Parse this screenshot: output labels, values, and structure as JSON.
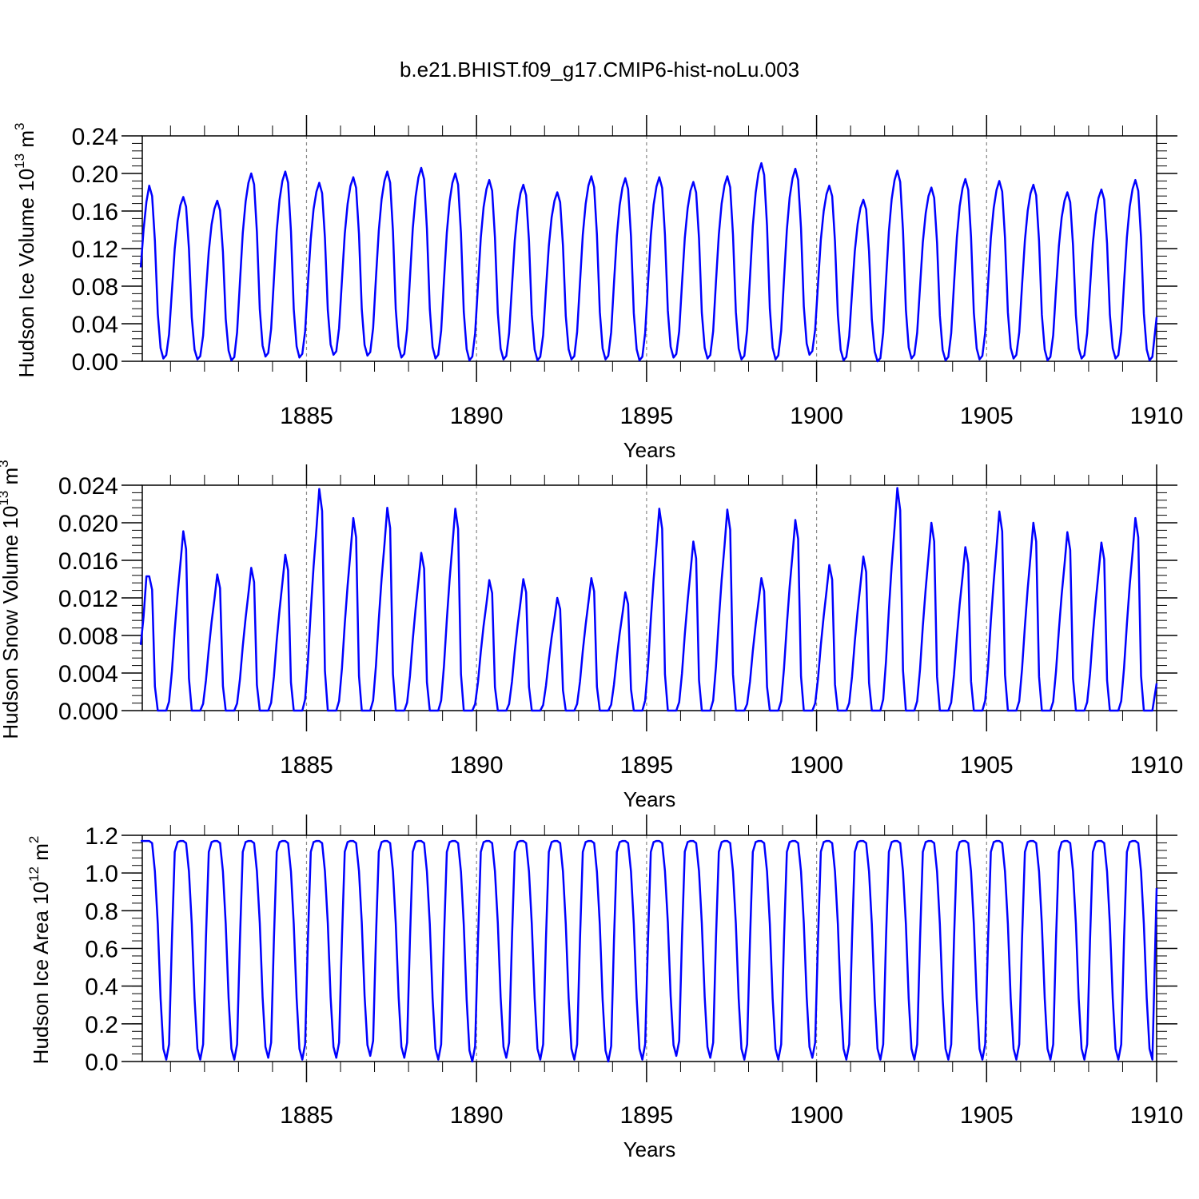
{
  "title": "b.e21.BHIST.f09_g17.CMIP6-hist-noLu.003",
  "colors": {
    "series": "#0000ff",
    "axis": "#000000",
    "refline": "#888888"
  },
  "chart_data": [
    {
      "type": "line",
      "id": "ice-volume",
      "ylabel_main": "Hudson Ice Volume 10",
      "ylabel_exp": "13",
      "ylabel_unit": " m",
      "ylabel_unit_exp": "3",
      "xlabel": "Years",
      "xlim": [
        1880.17,
        1910.0
      ],
      "ylim": [
        0,
        0.24
      ],
      "yticks": [
        "0.00",
        "0.04",
        "0.08",
        "0.12",
        "0.16",
        "0.20",
        "0.24"
      ],
      "yminor_step": 0.008,
      "xticks": [
        "1885",
        "1890",
        "1895",
        "1900",
        "1905",
        "1910"
      ],
      "ref_lines_x": [
        1885,
        1890,
        1895,
        1900,
        1905
      ],
      "start_year": 1880.125,
      "first_values": [
        0.1,
        0.14,
        0.17
      ],
      "peaks": [
        0.187,
        0.175,
        0.171,
        0.2,
        0.202,
        0.19,
        0.196,
        0.202,
        0.206,
        0.2,
        0.193,
        0.188,
        0.18,
        0.197,
        0.195,
        0.196,
        0.191,
        0.197,
        0.211,
        0.205,
        0.187,
        0.172,
        0.203,
        0.185,
        0.194,
        0.192,
        0.188,
        0.18,
        0.183,
        0.193
      ],
      "minima": [
        0.003,
        0.002,
        0.001,
        0.005,
        0.004,
        0.007,
        0.006,
        0.004,
        0.003,
        0.001,
        0.002,
        0.001,
        0.002,
        0.002,
        0.001,
        0.004,
        0.003,
        0.002,
        0.002,
        0.007,
        0.001,
        0.0,
        0.003,
        0.001,
        0.002,
        0.003,
        0.001,
        0.003,
        0.003,
        0.001
      ],
      "last_value": 0.047
    },
    {
      "type": "line",
      "id": "snow-volume",
      "ylabel_main": "Hudson Snow Volume 10",
      "ylabel_exp": "13",
      "ylabel_unit": " m",
      "ylabel_unit_exp": "3",
      "xlabel": "Years",
      "xlim": [
        1880.17,
        1910.0
      ],
      "ylim": [
        0,
        0.024
      ],
      "yticks": [
        "0.000",
        "0.004",
        "0.008",
        "0.012",
        "0.016",
        "0.020",
        "0.024"
      ],
      "yminor_step": 0.0008,
      "xticks": [
        "1885",
        "1890",
        "1895",
        "1900",
        "1905",
        "1910"
      ],
      "ref_lines_x": [
        1885,
        1890,
        1895,
        1900,
        1905
      ],
      "start_year": 1880.125,
      "first_values": [
        0.007,
        0.01,
        0.0143
      ],
      "peaks": [
        0.0143,
        0.0191,
        0.0145,
        0.0152,
        0.0166,
        0.0236,
        0.0205,
        0.0216,
        0.0168,
        0.0215,
        0.0139,
        0.014,
        0.012,
        0.0141,
        0.0126,
        0.0215,
        0.018,
        0.0214,
        0.0141,
        0.0203,
        0.0155,
        0.0164,
        0.0237,
        0.02,
        0.0174,
        0.0212,
        0.02,
        0.019,
        0.0179,
        0.0205
      ],
      "minima": [
        0,
        0,
        0,
        0,
        0,
        0,
        0,
        0,
        0,
        0,
        0,
        0,
        0,
        0,
        0,
        0,
        0,
        0,
        0,
        0,
        0,
        0,
        0,
        0,
        0,
        0,
        0,
        0,
        0,
        0
      ],
      "last_value": 0.0029
    },
    {
      "type": "line",
      "id": "ice-area",
      "ylabel_main": "Hudson Ice Area 10",
      "ylabel_exp": "12",
      "ylabel_unit": " m",
      "ylabel_unit_exp": "2",
      "xlabel": "Years",
      "xlim": [
        1880.17,
        1910.0
      ],
      "ylim": [
        0,
        1.2
      ],
      "yticks": [
        "0.0",
        "0.2",
        "0.4",
        "0.6",
        "0.8",
        "1.0",
        "1.2"
      ],
      "yminor_step": 0.04,
      "xticks": [
        "1885",
        "1890",
        "1895",
        "1900",
        "1905",
        "1910"
      ],
      "ref_lines_x": [
        1885,
        1890,
        1895,
        1900,
        1905
      ],
      "start_year": 1880.125,
      "first_values": [
        1.17,
        1.17,
        1.17
      ],
      "peaks": [
        1.17,
        1.17,
        1.17,
        1.17,
        1.17,
        1.17,
        1.17,
        1.17,
        1.17,
        1.17,
        1.17,
        1.17,
        1.17,
        1.17,
        1.17,
        1.17,
        1.17,
        1.17,
        1.17,
        1.17,
        1.17,
        1.17,
        1.17,
        1.17,
        1.17,
        1.17,
        1.17,
        1.17,
        1.17,
        1.17
      ],
      "minima": [
        0.01,
        0.01,
        0.01,
        0.02,
        0.01,
        0.02,
        0.03,
        0.02,
        0.01,
        0.0,
        0.02,
        0.01,
        0.01,
        0.0,
        0.01,
        0.03,
        0.02,
        0.01,
        0.01,
        0.02,
        0.01,
        0.01,
        0.01,
        0.01,
        0.01,
        0.01,
        0.01,
        0.01,
        0.01,
        0.01
      ],
      "last_value": 0.92
    }
  ]
}
